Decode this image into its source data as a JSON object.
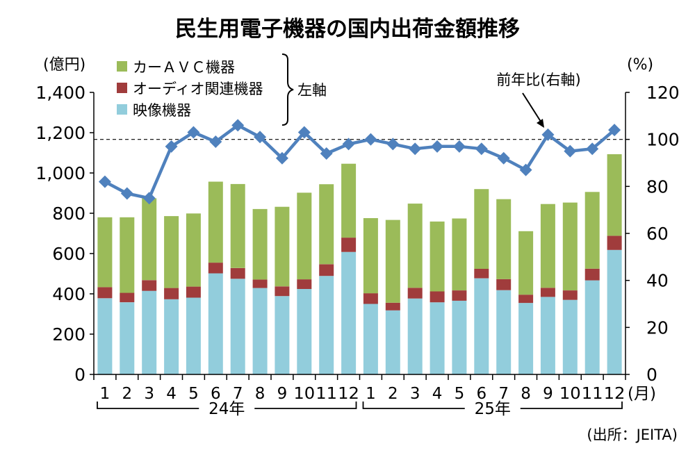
{
  "chart_data": {
    "type": "bar",
    "stacked": true,
    "title": "民生用電子機器の国内出荷金額推移",
    "left_unit": "(億円)",
    "right_unit": "(%)",
    "left_axis_note": "左軸",
    "ratio_label": "前年比(右軸)",
    "source": "(出所：JEITA)",
    "month_unit": "(月)",
    "left_ylim": [
      0,
      1400
    ],
    "left_ticks": [
      "0",
      "200",
      "400",
      "600",
      "800",
      "1,000",
      "1,200",
      "1,400"
    ],
    "right_ylim": [
      0,
      120
    ],
    "right_ticks": [
      "0",
      "20",
      "40",
      "60",
      "80",
      "100",
      "120"
    ],
    "reference_line": 100,
    "categories": [
      "1",
      "2",
      "3",
      "4",
      "5",
      "6",
      "7",
      "8",
      "9",
      "10",
      "11",
      "12",
      "1",
      "2",
      "3",
      "4",
      "5",
      "6",
      "7",
      "8",
      "9",
      "10",
      "11",
      "12"
    ],
    "year_groups": [
      {
        "label": "24年",
        "start": 0,
        "end": 11
      },
      {
        "label": "25年",
        "start": 12,
        "end": 23
      }
    ],
    "series": [
      {
        "name": "映像機器",
        "color": "#92cddc",
        "values": [
          378,
          358,
          415,
          373,
          381,
          502,
          475,
          429,
          389,
          424,
          489,
          608,
          350,
          318,
          377,
          358,
          366,
          477,
          418,
          355,
          385,
          370,
          467,
          618
        ]
      },
      {
        "name": "オーディオ関連機器",
        "color": "#a03c3c",
        "values": [
          55,
          47,
          53,
          56,
          55,
          53,
          53,
          42,
          48,
          48,
          58,
          71,
          53,
          38,
          53,
          54,
          51,
          47,
          55,
          41,
          45,
          47,
          58,
          70
        ]
      },
      {
        "name": "カーＡＶＣ機器",
        "color": "#9bbb59",
        "values": [
          347,
          375,
          406,
          357,
          363,
          402,
          417,
          350,
          395,
          430,
          397,
          367,
          373,
          411,
          418,
          347,
          357,
          396,
          397,
          315,
          416,
          436,
          381,
          405
        ]
      }
    ],
    "ratio": {
      "name": "前年比(右軸)",
      "color": "#4f81bd",
      "values": [
        82,
        77,
        75,
        97,
        103,
        99,
        106,
        101,
        92,
        103,
        94,
        98,
        100,
        98,
        96,
        97,
        97,
        96,
        92,
        87,
        102,
        95,
        96,
        104
      ]
    }
  }
}
